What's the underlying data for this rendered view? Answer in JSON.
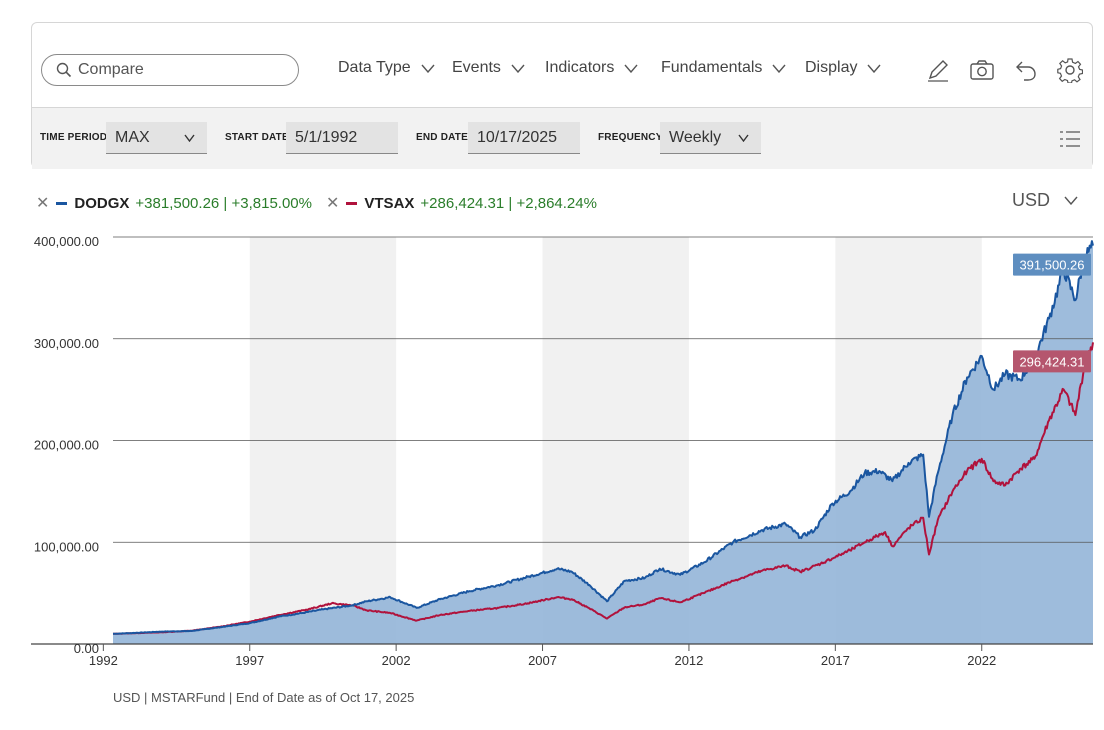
{
  "toolbar": {
    "search_placeholder": "Compare",
    "menus": [
      {
        "label": "Data Type"
      },
      {
        "label": "Events"
      },
      {
        "label": "Indicators"
      },
      {
        "label": "Fundamentals"
      },
      {
        "label": "Display"
      }
    ],
    "tool_icons": [
      "pencil-icon",
      "camera-icon",
      "undo-icon",
      "gear-icon"
    ]
  },
  "settings": {
    "time_period_label": "TIME PERIOD",
    "time_period_value": "MAX",
    "start_date_label": "START DATE",
    "start_date_value": "5/1/1992",
    "end_date_label": "END DATE",
    "end_date_value": "10/17/2025",
    "frequency_label": "FREQUENCY",
    "frequency_value": "Weekly"
  },
  "legend": [
    {
      "name": "DODGX",
      "change": "+381,500.26 | +3,815.00%",
      "color": "#1a56a0"
    },
    {
      "name": "VTSAX",
      "change": "+286,424.31 | +2,864.24%",
      "color": "#b0123c"
    }
  ],
  "currency": "USD",
  "footnote": "USD | MSTARFund | End of Date as of Oct 17, 2025",
  "colors": {
    "dodgx_line": "#1a56a0",
    "vtsax_line": "#b0123c",
    "area_fill": "#94b5d8",
    "shade_band": "#f1f1f1",
    "gain_text": "#2a7d2a",
    "dodgx_tag": "#5e8ec0",
    "vtsax_tag": "#b5566e"
  },
  "chart_data": {
    "type": "line",
    "xlim": [
      1992.33,
      2025.8
    ],
    "ylim": [
      0,
      400000
    ],
    "yticks": [
      0,
      100000,
      200000,
      300000,
      400000
    ],
    "ytick_labels": [
      "0.00",
      "100,000.00",
      "200,000.00",
      "300,000.00",
      "400,000.00"
    ],
    "xticks": [
      1992,
      1997,
      2002,
      2007,
      2012,
      2017,
      2022
    ],
    "xtick_labels": [
      "1992",
      "1997",
      "2002",
      "2007",
      "2012",
      "2017",
      "2022"
    ],
    "shaded_periods": [
      [
        1997,
        2002
      ],
      [
        2007,
        2012
      ],
      [
        2017,
        2022
      ]
    ],
    "grid": true,
    "series": [
      {
        "name": "DODGX",
        "end_label": "391,500.26",
        "area": true,
        "points": [
          [
            1992.33,
            10000
          ],
          [
            1993.0,
            10800
          ],
          [
            1994.0,
            12200
          ],
          [
            1995.0,
            12800
          ],
          [
            1996.0,
            16500
          ],
          [
            1997.0,
            20500
          ],
          [
            1998.0,
            27000
          ],
          [
            1998.8,
            30500
          ],
          [
            1999.5,
            34000
          ],
          [
            2000.5,
            38000
          ],
          [
            2001.0,
            42000
          ],
          [
            2001.8,
            46000
          ],
          [
            2002.7,
            35500
          ],
          [
            2003.5,
            44000
          ],
          [
            2004.5,
            52000
          ],
          [
            2005.5,
            58000
          ],
          [
            2006.5,
            66000
          ],
          [
            2007.5,
            74000
          ],
          [
            2008.0,
            71000
          ],
          [
            2008.6,
            58000
          ],
          [
            2009.2,
            42000
          ],
          [
            2009.8,
            62000
          ],
          [
            2010.5,
            65000
          ],
          [
            2011.0,
            74000
          ],
          [
            2011.7,
            68000
          ],
          [
            2012.5,
            80000
          ],
          [
            2013.5,
            100000
          ],
          [
            2014.5,
            112000
          ],
          [
            2015.3,
            118000
          ],
          [
            2015.8,
            105000
          ],
          [
            2016.3,
            112000
          ],
          [
            2016.9,
            138000
          ],
          [
            2017.5,
            150000
          ],
          [
            2018.0,
            168000
          ],
          [
            2018.5,
            170000
          ],
          [
            2018.95,
            160000
          ],
          [
            2019.5,
            178000
          ],
          [
            2020.0,
            186000
          ],
          [
            2020.2,
            125000
          ],
          [
            2020.5,
            168000
          ],
          [
            2021.0,
            225000
          ],
          [
            2021.5,
            262000
          ],
          [
            2022.0,
            283000
          ],
          [
            2022.4,
            250000
          ],
          [
            2022.8,
            265000
          ],
          [
            2023.3,
            260000
          ],
          [
            2023.8,
            280000
          ],
          [
            2024.3,
            320000
          ],
          [
            2024.8,
            368000
          ],
          [
            2025.2,
            338000
          ],
          [
            2025.5,
            380000
          ],
          [
            2025.8,
            391500
          ]
        ]
      },
      {
        "name": "VTSAX",
        "end_label": "296,424.31",
        "area": false,
        "points": [
          [
            1992.33,
            10000
          ],
          [
            1993.0,
            10600
          ],
          [
            1994.0,
            11500
          ],
          [
            1995.0,
            13000
          ],
          [
            1996.0,
            17000
          ],
          [
            1997.0,
            22000
          ],
          [
            1998.0,
            28500
          ],
          [
            1999.0,
            34000
          ],
          [
            1999.8,
            40000
          ],
          [
            2000.5,
            38000
          ],
          [
            2001.0,
            33000
          ],
          [
            2001.8,
            30500
          ],
          [
            2002.7,
            23000
          ],
          [
            2003.5,
            28500
          ],
          [
            2004.5,
            32500
          ],
          [
            2005.5,
            35500
          ],
          [
            2006.5,
            40000
          ],
          [
            2007.5,
            46000
          ],
          [
            2008.0,
            44000
          ],
          [
            2008.6,
            35000
          ],
          [
            2009.2,
            25000
          ],
          [
            2009.8,
            36000
          ],
          [
            2010.5,
            39000
          ],
          [
            2011.0,
            45000
          ],
          [
            2011.7,
            41000
          ],
          [
            2012.5,
            50000
          ],
          [
            2013.5,
            62000
          ],
          [
            2014.5,
            72000
          ],
          [
            2015.3,
            77000
          ],
          [
            2015.8,
            71000
          ],
          [
            2016.5,
            79000
          ],
          [
            2017.5,
            92000
          ],
          [
            2018.0,
            100000
          ],
          [
            2018.7,
            110000
          ],
          [
            2018.95,
            96000
          ],
          [
            2019.5,
            114000
          ],
          [
            2020.0,
            124000
          ],
          [
            2020.2,
            88000
          ],
          [
            2020.5,
            122000
          ],
          [
            2021.0,
            150000
          ],
          [
            2021.5,
            170000
          ],
          [
            2022.0,
            182000
          ],
          [
            2022.4,
            160000
          ],
          [
            2022.8,
            156000
          ],
          [
            2023.3,
            172000
          ],
          [
            2023.8,
            182000
          ],
          [
            2024.3,
            220000
          ],
          [
            2024.8,
            250000
          ],
          [
            2025.2,
            225000
          ],
          [
            2025.5,
            272000
          ],
          [
            2025.8,
            296424
          ]
        ]
      }
    ]
  }
}
